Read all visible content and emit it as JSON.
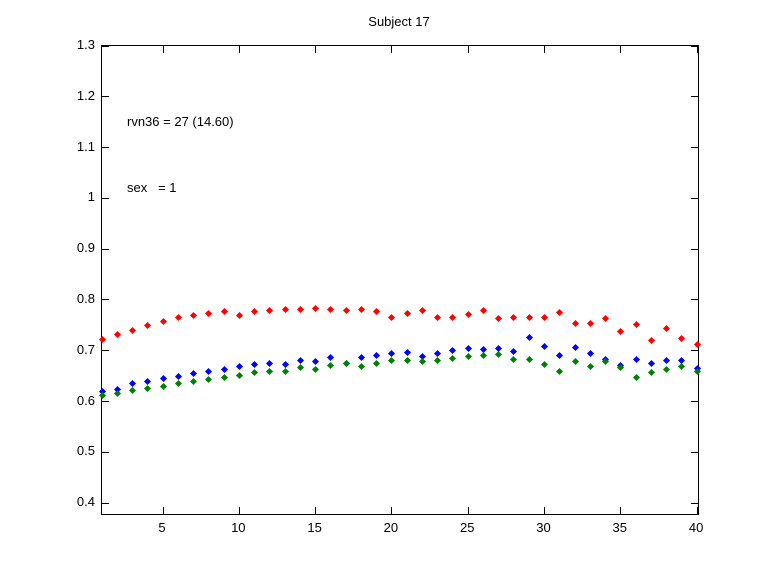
{
  "chart_data": {
    "type": "scatter",
    "title": "Subject 17",
    "annotations": [
      "rvn36 = 27 (14.60)",
      "sex   = 1"
    ],
    "xlabel": "",
    "ylabel": "",
    "xlim": [
      1,
      40.06
    ],
    "ylim": [
      0.3785,
      1.3
    ],
    "xticks": [
      5,
      10,
      15,
      20,
      25,
      30,
      35,
      40
    ],
    "yticks": [
      0.4,
      0.5,
      0.6,
      0.7,
      0.8,
      0.9,
      1,
      1.1,
      1.2,
      1.3
    ],
    "ytick_labels": [
      "0.4",
      "0.5",
      "0.6",
      "0.7",
      "0.8",
      "0.9",
      "1",
      "1.1",
      "1.2",
      "1.3"
    ],
    "grid": false,
    "legend_position": "none",
    "marker": "diamond",
    "marker_size_px": 7,
    "axis_color": "#000000",
    "background_color": "#ffffff",
    "x": [
      1,
      2,
      3,
      4,
      5,
      6,
      7,
      8,
      9,
      10,
      11,
      12,
      13,
      14,
      15,
      16,
      17,
      18,
      19,
      20,
      21,
      22,
      23,
      24,
      25,
      26,
      27,
      28,
      29,
      30,
      31,
      32,
      33,
      34,
      35,
      36,
      37,
      38,
      39,
      40
    ],
    "series": [
      {
        "name": "red",
        "color": "#ff0000",
        "values": [
          0.722,
          0.732,
          0.74,
          0.75,
          0.758,
          0.766,
          0.77,
          0.774,
          0.778,
          0.77,
          0.778,
          0.78,
          0.781,
          0.781,
          0.783,
          0.781,
          0.78,
          0.781,
          0.778,
          0.766,
          0.774,
          0.779,
          0.766,
          0.765,
          0.772,
          0.779,
          0.764,
          0.766,
          0.766,
          0.766,
          0.776,
          0.754,
          0.754,
          0.764,
          0.738,
          0.752,
          0.72,
          0.743,
          0.724,
          0.713
        ]
      },
      {
        "name": "blue",
        "color": "#0000ff",
        "values": [
          0.619,
          0.624,
          0.635,
          0.64,
          0.646,
          0.65,
          0.655,
          0.659,
          0.663,
          0.668,
          0.672,
          0.674,
          0.672,
          0.68,
          0.679,
          0.687,
          0.675,
          0.686,
          0.69,
          0.694,
          0.696,
          0.688,
          0.695,
          0.7,
          0.705,
          0.703,
          0.705,
          0.698,
          0.726,
          0.709,
          0.69,
          0.707,
          0.694,
          0.683,
          0.671,
          0.683,
          0.674,
          0.68,
          0.681,
          0.665
        ]
      },
      {
        "name": "green",
        "color": "#008000",
        "values": [
          0.612,
          0.615,
          0.622,
          0.626,
          0.63,
          0.635,
          0.64,
          0.643,
          0.648,
          0.652,
          0.657,
          0.66,
          0.659,
          0.666,
          0.664,
          0.671,
          0.675,
          0.668,
          0.674,
          0.68,
          0.68,
          0.678,
          0.68,
          0.684,
          0.688,
          0.69,
          0.692,
          0.683,
          0.683,
          0.673,
          0.659,
          0.678,
          0.668,
          0.678,
          0.666,
          0.647,
          0.658,
          0.663,
          0.668,
          0.659
        ]
      }
    ]
  }
}
